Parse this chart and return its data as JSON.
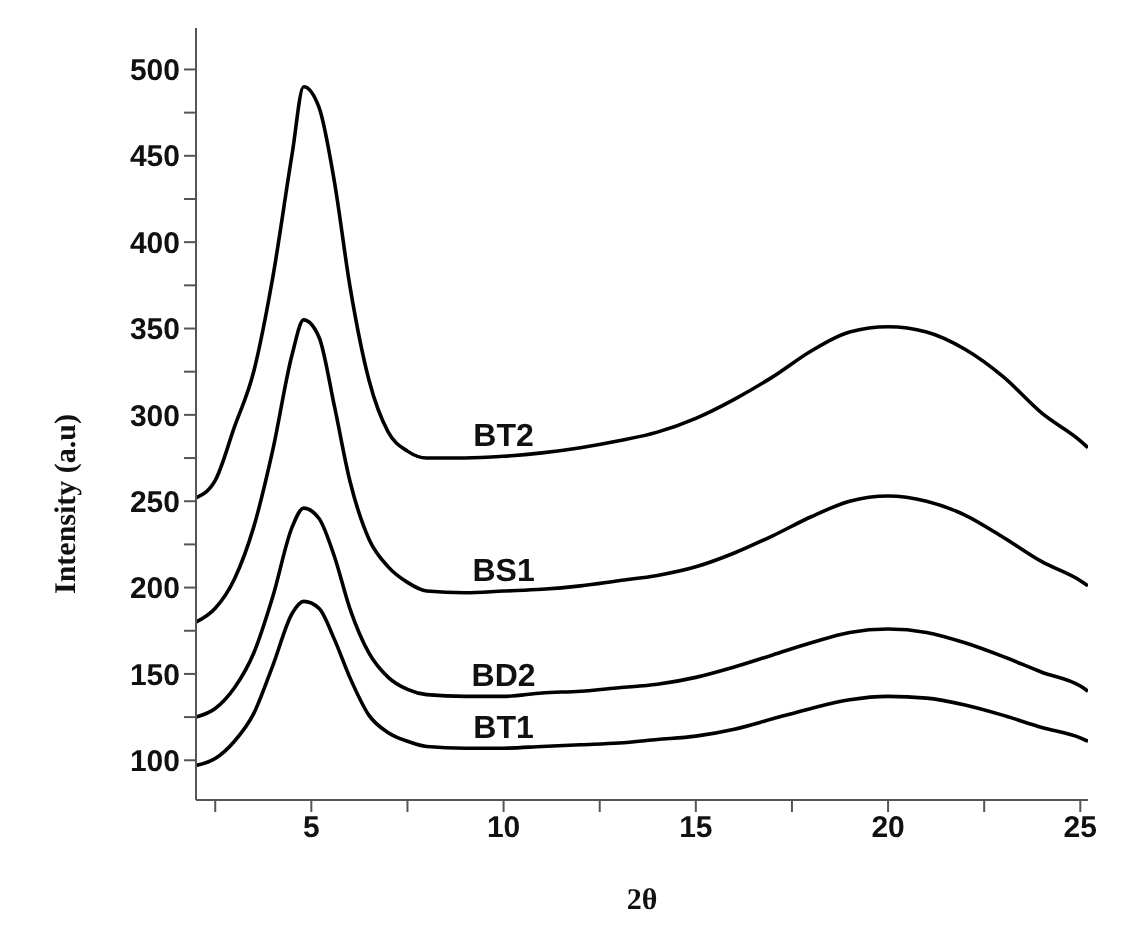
{
  "chart_data": {
    "type": "line",
    "xlabel": "2θ",
    "ylabel": "Intensity (a.u)",
    "x": [
      2,
      2.5,
      3,
      3.5,
      4,
      4.5,
      4.8,
      5.2,
      5.6,
      6,
      6.5,
      7,
      7.5,
      8,
      9,
      10,
      11,
      12,
      13,
      14,
      15,
      16,
      17,
      18,
      19,
      20,
      21,
      22,
      23,
      24,
      25,
      25.2
    ],
    "series": [
      {
        "name": "BT2",
        "color": "#000000",
        "values": [
          252,
          262,
          293,
          325,
          380,
          451,
          490,
          478,
          435,
          375,
          320,
          290,
          279,
          275,
          275,
          276,
          278,
          281,
          285,
          290,
          298,
          309,
          322,
          337,
          348,
          351,
          348,
          338,
          322,
          301,
          285,
          281
        ]
      },
      {
        "name": "BS1",
        "color": "#000000",
        "values": [
          180,
          188,
          205,
          235,
          280,
          335,
          355,
          345,
          305,
          262,
          228,
          212,
          203,
          198,
          197,
          198,
          199,
          201,
          204,
          207,
          212,
          220,
          230,
          241,
          250,
          253,
          250,
          242,
          229,
          215,
          204,
          201
        ]
      },
      {
        "name": "BD2",
        "color": "#000000",
        "values": [
          125,
          130,
          142,
          162,
          195,
          235,
          246,
          240,
          218,
          188,
          162,
          148,
          141,
          138,
          137,
          137,
          139,
          140,
          142,
          144,
          148,
          154,
          161,
          168,
          174,
          176,
          174,
          168,
          160,
          151,
          143,
          140
        ]
      },
      {
        "name": "BT1",
        "color": "#000000",
        "values": [
          97,
          101,
          111,
          127,
          155,
          185,
          192,
          188,
          170,
          148,
          126,
          116,
          111,
          108,
          107,
          107,
          108,
          109,
          110,
          112,
          114,
          118,
          124,
          130,
          135,
          137,
          136,
          132,
          126,
          119,
          113,
          111
        ]
      }
    ],
    "xlim": [
      2,
      25.2
    ],
    "ylim": [
      77,
      524
    ],
    "xticks": [
      {
        "value": 2.5,
        "label": null
      },
      5,
      {
        "value": 7.5,
        "label": null
      },
      10,
      {
        "value": 12.5,
        "label": null
      },
      15,
      {
        "value": 17.5,
        "label": null
      },
      20,
      {
        "value": 22.5,
        "label": null
      },
      25
    ],
    "yticks": [
      100,
      {
        "value": 125,
        "label": null
      },
      150,
      {
        "value": 175,
        "label": null
      },
      200,
      {
        "value": 225,
        "label": null
      },
      250,
      {
        "value": 275,
        "label": null
      },
      300,
      {
        "value": 325,
        "label": null
      },
      350,
      {
        "value": 375,
        "label": null
      },
      400,
      {
        "value": 425,
        "label": null
      },
      450,
      {
        "value": 475,
        "label": null
      },
      500
    ],
    "grid": false,
    "legend": false,
    "marker": "none",
    "line_style": "solid"
  }
}
